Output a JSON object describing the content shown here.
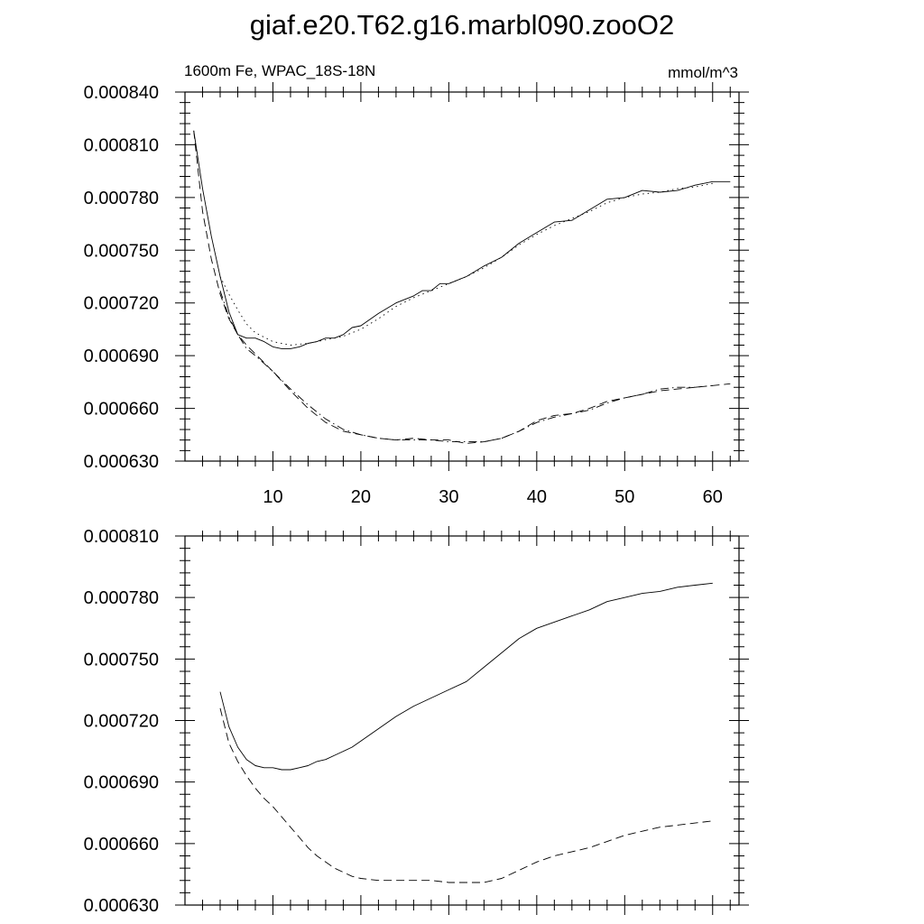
{
  "title": "giaf.e20.T62.g16.marbl090.zooO2",
  "chart_data": [
    {
      "type": "line",
      "left_label": "1600m Fe, WPAC_18S-18N",
      "right_label": "mmol/m^3",
      "xlim": [
        0,
        63
      ],
      "ylim": [
        0.00063,
        0.00084
      ],
      "xticks": [
        10,
        20,
        30,
        40,
        50,
        60
      ],
      "yticks": [
        "0.000630",
        "0.000660",
        "0.000690",
        "0.000720",
        "0.000750",
        "0.000780",
        "0.000810",
        "0.000840"
      ],
      "series": [
        {
          "style": "solid",
          "x": [
            1,
            2,
            3,
            4,
            5,
            6,
            7,
            8,
            9,
            10,
            11,
            12,
            13,
            14,
            15,
            16,
            17,
            18,
            19,
            20,
            22,
            24,
            26,
            27,
            28,
            29,
            30,
            31,
            32,
            34,
            36,
            38,
            40,
            42,
            44,
            46,
            48,
            50,
            52,
            54,
            56,
            58,
            60,
            62
          ],
          "y": [
            0.000818,
            0.000785,
            0.000758,
            0.000735,
            0.000715,
            0.000702,
            0.0007,
            0.0007,
            0.000698,
            0.000695,
            0.000694,
            0.000694,
            0.000695,
            0.000697,
            0.000698,
            0.0007,
            0.0007,
            0.000702,
            0.000706,
            0.000707,
            0.000714,
            0.00072,
            0.000724,
            0.000727,
            0.000727,
            0.000731,
            0.000731,
            0.000733,
            0.000735,
            0.000741,
            0.000746,
            0.000754,
            0.00076,
            0.000766,
            0.000767,
            0.000773,
            0.000779,
            0.00078,
            0.000784,
            0.000783,
            0.000784,
            0.000787,
            0.000789,
            0.000789
          ]
        },
        {
          "style": "dashed",
          "x": [
            1,
            2,
            3,
            4,
            5,
            6,
            7,
            8,
            10,
            12,
            14,
            16,
            18,
            20,
            22,
            24,
            26,
            28,
            30,
            32,
            34,
            36,
            38,
            40,
            42,
            44,
            46,
            48,
            50,
            52,
            54,
            56,
            58,
            60,
            62
          ],
          "y": [
            0.000818,
            0.000772,
            0.000745,
            0.000725,
            0.000711,
            0.000702,
            0.000696,
            0.000691,
            0.000681,
            0.00067,
            0.00066,
            0.000652,
            0.000647,
            0.000645,
            0.000643,
            0.000642,
            0.000643,
            0.000642,
            0.000642,
            0.00064,
            0.000641,
            0.000643,
            0.000647,
            0.000653,
            0.000656,
            0.000657,
            0.00066,
            0.000664,
            0.000666,
            0.000668,
            0.00067,
            0.000671,
            0.000672,
            0.000673,
            0.000674
          ]
        },
        {
          "style": "dotted",
          "x": [
            4,
            5,
            6,
            7,
            8,
            10,
            12,
            14,
            16,
            18,
            20,
            22,
            24,
            26,
            28,
            30,
            32,
            34,
            36,
            38,
            40,
            42,
            44,
            46,
            48,
            50,
            52,
            54,
            56,
            58,
            60
          ],
          "y": [
            0.000735,
            0.000725,
            0.000716,
            0.000708,
            0.000703,
            0.000698,
            0.000696,
            0.000697,
            0.000699,
            0.000701,
            0.000705,
            0.000711,
            0.000718,
            0.000723,
            0.000727,
            0.000731,
            0.000735,
            0.00074,
            0.000746,
            0.000753,
            0.000759,
            0.000764,
            0.000768,
            0.000772,
            0.000777,
            0.00078,
            0.000782,
            0.000783,
            0.000785,
            0.000786,
            0.000788
          ]
        },
        {
          "style": "dashdot",
          "x": [
            4,
            5,
            6,
            7,
            8,
            10,
            12,
            14,
            16,
            18,
            20,
            22,
            24,
            26,
            28,
            30,
            32,
            34,
            36,
            38,
            40,
            42,
            44,
            46,
            48,
            50,
            52,
            54,
            56,
            58,
            60
          ],
          "y": [
            0.000727,
            0.000712,
            0.000702,
            0.000694,
            0.00069,
            0.000681,
            0.000671,
            0.000662,
            0.000654,
            0.000648,
            0.000645,
            0.000643,
            0.000642,
            0.000642,
            0.000642,
            0.000641,
            0.000641,
            0.000641,
            0.000643,
            0.000647,
            0.000652,
            0.000655,
            0.000657,
            0.000659,
            0.000663,
            0.000666,
            0.000668,
            0.000671,
            0.000672,
            0.000672,
            0.000673
          ]
        }
      ]
    },
    {
      "type": "line",
      "xlim": [
        0,
        63
      ],
      "ylim": [
        0.00063,
        0.00081
      ],
      "xticks": [
        10,
        20,
        30,
        40,
        50,
        60
      ],
      "yticks": [
        "0.000630",
        "0.000660",
        "0.000690",
        "0.000720",
        "0.000750",
        "0.000780",
        "0.000810"
      ],
      "series": [
        {
          "style": "solid",
          "x": [
            4,
            5,
            6,
            7,
            8,
            9,
            10,
            11,
            12,
            13,
            14,
            15,
            16,
            17,
            18,
            19,
            20,
            22,
            24,
            26,
            28,
            30,
            32,
            34,
            36,
            38,
            40,
            42,
            44,
            46,
            48,
            50,
            52,
            54,
            56,
            58,
            60
          ],
          "y": [
            0.000734,
            0.000717,
            0.000707,
            0.000701,
            0.000698,
            0.000697,
            0.000697,
            0.000696,
            0.000696,
            0.000697,
            0.000698,
            0.0007,
            0.000701,
            0.000703,
            0.000705,
            0.000707,
            0.00071,
            0.000716,
            0.000722,
            0.000727,
            0.000731,
            0.000735,
            0.000739,
            0.000746,
            0.000753,
            0.00076,
            0.000765,
            0.000768,
            0.000771,
            0.000774,
            0.000778,
            0.00078,
            0.000782,
            0.000783,
            0.000785,
            0.000786,
            0.000787
          ]
        },
        {
          "style": "dashed",
          "x": [
            4,
            5,
            6,
            7,
            8,
            9,
            10,
            11,
            12,
            13,
            14,
            15,
            16,
            17,
            18,
            19,
            20,
            22,
            24,
            26,
            28,
            30,
            32,
            34,
            36,
            38,
            40,
            42,
            44,
            46,
            48,
            50,
            52,
            54,
            56,
            58,
            60
          ],
          "y": [
            0.000726,
            0.000709,
            0.0007,
            0.000693,
            0.000687,
            0.000682,
            0.000678,
            0.000673,
            0.000668,
            0.000663,
            0.000658,
            0.000654,
            0.000651,
            0.000648,
            0.000646,
            0.000644,
            0.000643,
            0.000642,
            0.000642,
            0.000642,
            0.000642,
            0.000641,
            0.000641,
            0.000641,
            0.000643,
            0.000647,
            0.000651,
            0.000654,
            0.000656,
            0.000658,
            0.000661,
            0.000664,
            0.000666,
            0.000668,
            0.000669,
            0.00067,
            0.000671
          ]
        }
      ]
    }
  ]
}
